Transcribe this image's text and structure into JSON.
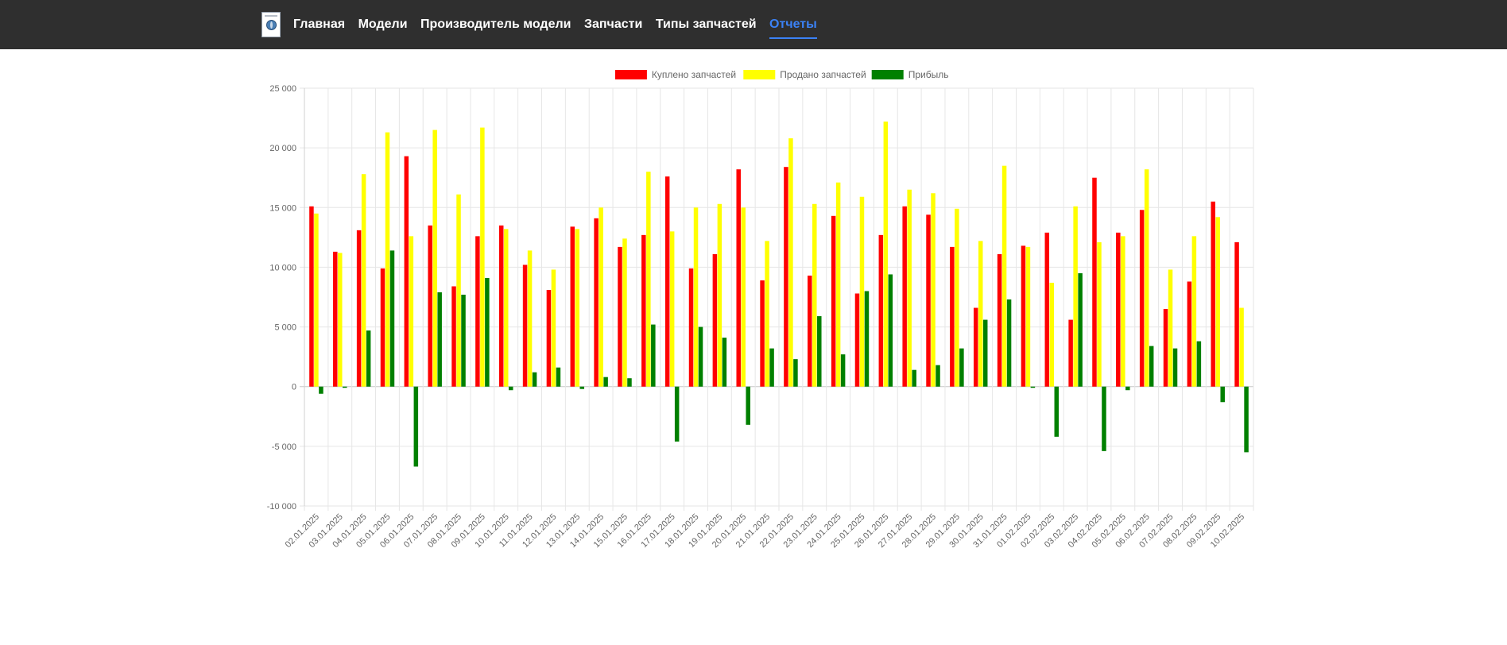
{
  "nav": {
    "brand_icon": "globe-logo-icon",
    "items": [
      {
        "label": "Главная",
        "active": false
      },
      {
        "label": "Модели",
        "active": false
      },
      {
        "label": "Производитель модели",
        "active": false
      },
      {
        "label": "Запчасти",
        "active": false
      },
      {
        "label": "Типы запчастей",
        "active": false
      },
      {
        "label": "Отчеты",
        "active": true
      }
    ],
    "colors": {
      "background": "#2f2f2f",
      "text": "#ffffff",
      "active": "#3b82f6"
    }
  },
  "chart_data": {
    "type": "bar",
    "title": "",
    "xlabel": "",
    "ylabel": "",
    "ylim": [
      -10000,
      25000
    ],
    "yticks": [
      -10000,
      -5000,
      0,
      5000,
      10000,
      15000,
      20000,
      25000
    ],
    "ytick_labels": [
      "-10 000",
      "-5 000",
      "0",
      "5 000",
      "10 000",
      "15 000",
      "20 000",
      "25 000"
    ],
    "grid": true,
    "legend_position": "top-center",
    "categories": [
      "02.01.2025",
      "03.01.2025",
      "04.01.2025",
      "05.01.2025",
      "06.01.2025",
      "07.01.2025",
      "08.01.2025",
      "09.01.2025",
      "10.01.2025",
      "11.01.2025",
      "12.01.2025",
      "13.01.2025",
      "14.01.2025",
      "15.01.2025",
      "16.01.2025",
      "17.01.2025",
      "18.01.2025",
      "19.01.2025",
      "20.01.2025",
      "21.01.2025",
      "22.01.2025",
      "23.01.2025",
      "24.01.2025",
      "25.01.2025",
      "26.01.2025",
      "27.01.2025",
      "28.01.2025",
      "29.01.2025",
      "30.01.2025",
      "31.01.2025",
      "01.02.2025",
      "02.02.2025",
      "03.02.2025",
      "04.02.2025",
      "05.02.2025",
      "06.02.2025",
      "07.02.2025",
      "08.02.2025",
      "09.02.2025",
      "10.02.2025"
    ],
    "series": [
      {
        "name": "Куплено запчастей",
        "color": "#ff0000",
        "values": [
          15100,
          11300,
          13100,
          9900,
          19300,
          13500,
          8400,
          12600,
          13500,
          10200,
          8100,
          13400,
          14100,
          11700,
          12700,
          17600,
          9900,
          11100,
          18200,
          8900,
          18400,
          9300,
          14300,
          7800,
          12700,
          15100,
          14400,
          11700,
          6600,
          11100,
          11800,
          12900,
          5600,
          17500,
          12900,
          14800,
          6500,
          8800,
          15500,
          12100
        ]
      },
      {
        "name": "Продано запчастей",
        "color": "#ffff00",
        "values": [
          14500,
          11200,
          17800,
          21300,
          12600,
          21500,
          16100,
          21700,
          13200,
          11400,
          9800,
          13200,
          15000,
          12400,
          18000,
          13000,
          15000,
          15300,
          15000,
          12200,
          20800,
          15300,
          17100,
          15900,
          22200,
          16500,
          16200,
          14900,
          12200,
          18500,
          11700,
          8700,
          15100,
          12100,
          12600,
          18200,
          9800,
          12600,
          14200,
          6600
        ]
      },
      {
        "name": "Прибыль",
        "color": "#008000",
        "values": [
          -600,
          -100,
          4700,
          11400,
          -6700,
          7900,
          7700,
          9100,
          -300,
          1200,
          1600,
          -200,
          800,
          700,
          5200,
          -4600,
          5000,
          4100,
          -3200,
          3200,
          2300,
          5900,
          2700,
          8000,
          9400,
          1400,
          1800,
          3200,
          5600,
          7300,
          -100,
          -4200,
          9500,
          -5400,
          -300,
          3400,
          3200,
          3800,
          -1300,
          -5500
        ]
      }
    ]
  }
}
